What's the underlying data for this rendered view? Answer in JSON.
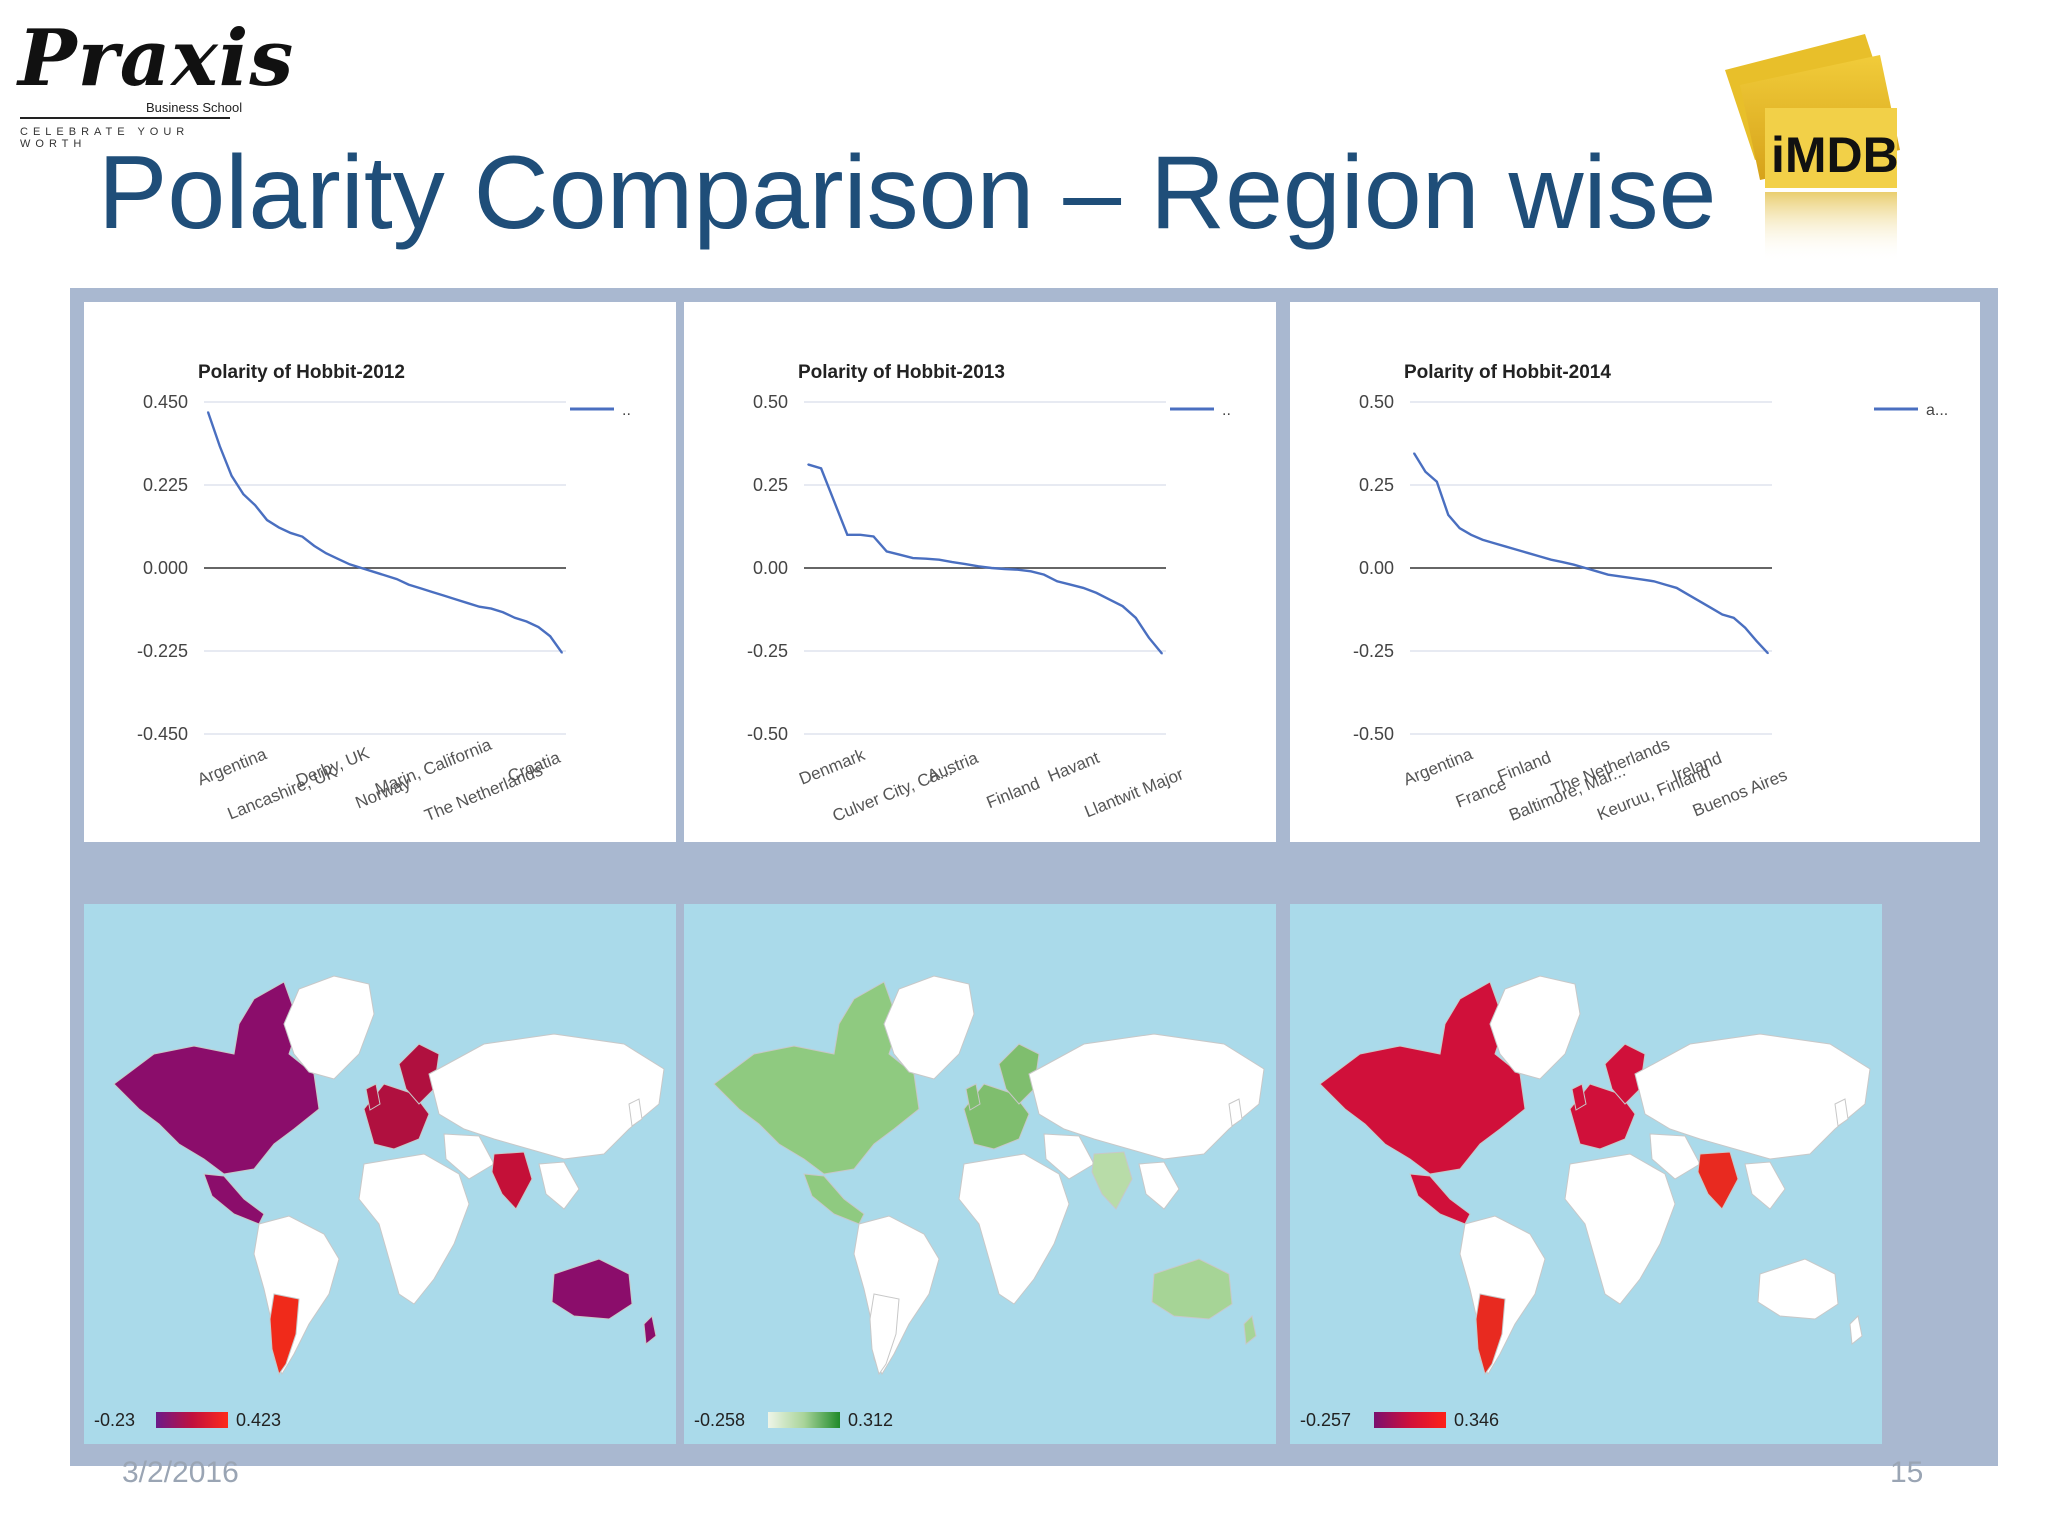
{
  "logo": {
    "word": "Praxis",
    "school": "Business School",
    "tagline": "CELEBRATE YOUR WORTH"
  },
  "imdb_logo": {
    "text": "iMDB"
  },
  "slide": {
    "title": "Polarity Comparison – Region wise",
    "footer_date": "3/2/2016",
    "footer_page": "15"
  },
  "colors": {
    "title": "#1f4e79",
    "line": "#4a6fc0",
    "panel": "#a9b8d0",
    "ocean": "#aadaea",
    "land": "#ffffff",
    "purple": "#8b0d6b",
    "red": "#e0103a",
    "green": "#78b96e"
  },
  "chart_data": [
    {
      "type": "line",
      "title": "Polarity of Hobbit-2012",
      "legend": "..",
      "ylim": [
        -0.45,
        0.45
      ],
      "yticks": [
        "0.450",
        "0.225",
        "0.000",
        "-0.225",
        "-0.450"
      ],
      "x_tick_labels": [
        "Argentina",
        "Lancashire, UK",
        "Derby, UK",
        "Norway",
        "Marin, California",
        "The Netherlands",
        "Croatia"
      ],
      "y": [
        0.423,
        0.33,
        0.25,
        0.2,
        0.17,
        0.13,
        0.11,
        0.095,
        0.085,
        0.06,
        0.04,
        0.025,
        0.01,
        0.0,
        -0.01,
        -0.02,
        -0.03,
        -0.045,
        -0.055,
        -0.065,
        -0.075,
        -0.085,
        -0.095,
        -0.105,
        -0.11,
        -0.12,
        -0.135,
        -0.145,
        -0.16,
        -0.185,
        -0.23
      ],
      "grid": true,
      "legend_position": "right"
    },
    {
      "type": "line",
      "title": "Polarity of Hobbit-2013",
      "legend": "..",
      "ylim": [
        -0.5,
        0.5
      ],
      "yticks": [
        "0.50",
        "0.25",
        "0.00",
        "-0.25",
        "-0.50"
      ],
      "x_tick_labels": [
        "Denmark",
        "Culver City, Ca...",
        "Austria",
        "Finland",
        "Havant",
        "Llantwit Major"
      ],
      "y": [
        0.312,
        0.3,
        0.2,
        0.1,
        0.1,
        0.095,
        0.05,
        0.04,
        0.03,
        0.028,
        0.025,
        0.018,
        0.012,
        0.005,
        0.0,
        -0.003,
        -0.005,
        -0.01,
        -0.02,
        -0.04,
        -0.05,
        -0.06,
        -0.075,
        -0.095,
        -0.115,
        -0.15,
        -0.21,
        -0.258
      ],
      "grid": true,
      "legend_position": "right"
    },
    {
      "type": "line",
      "title": "Polarity of Hobbit-2014",
      "legend": "a...",
      "ylim": [
        -0.5,
        0.5
      ],
      "yticks": [
        "0.50",
        "0.25",
        "0.00",
        "-0.25",
        "-0.50"
      ],
      "x_tick_labels": [
        "Argentina",
        "France",
        "Finland",
        "Baltimore, Mar...",
        "The Netherlands",
        "Keuruu, Finland",
        "Ireland",
        "Buenos Aires"
      ],
      "y": [
        0.346,
        0.29,
        0.26,
        0.16,
        0.12,
        0.1,
        0.085,
        0.075,
        0.065,
        0.055,
        0.045,
        0.035,
        0.025,
        0.018,
        0.01,
        0.0,
        -0.01,
        -0.02,
        -0.025,
        -0.03,
        -0.035,
        -0.04,
        -0.05,
        -0.06,
        -0.08,
        -0.1,
        -0.12,
        -0.14,
        -0.15,
        -0.18,
        -0.22,
        -0.257
      ],
      "grid": true,
      "legend_position": "right"
    }
  ],
  "maps": [
    {
      "name": "world-map-2012",
      "legend_min": "-0.23",
      "legend_max": "0.423",
      "gradient": [
        "#6b1a8a",
        "#c0103f",
        "#ff2a1a"
      ],
      "na_color": "#8b0d6b",
      "europe_color": "#b0103f",
      "india_color": "#c41038",
      "aus_color": "#8b0d6b",
      "arg_color": "#f02a1a"
    },
    {
      "name": "world-map-2013",
      "legend_min": "-0.258",
      "legend_max": "0.312",
      "gradient": [
        "#eef5e8",
        "#a9d49a",
        "#1f8a2a"
      ],
      "na_color": "#8fca80",
      "europe_color": "#7fbe6e",
      "india_color": "#b8dca8",
      "aus_color": "#a6d496",
      "arg_color": "#ffffff"
    },
    {
      "name": "world-map-2014",
      "legend_min": "-0.257",
      "legend_max": "0.346",
      "gradient": [
        "#7a1070",
        "#d0103a",
        "#ff2018"
      ],
      "na_color": "#d0103a",
      "europe_color": "#d0103a",
      "india_color": "#e82a20",
      "aus_color": "#ffffff",
      "arg_color": "#e82a20"
    }
  ]
}
